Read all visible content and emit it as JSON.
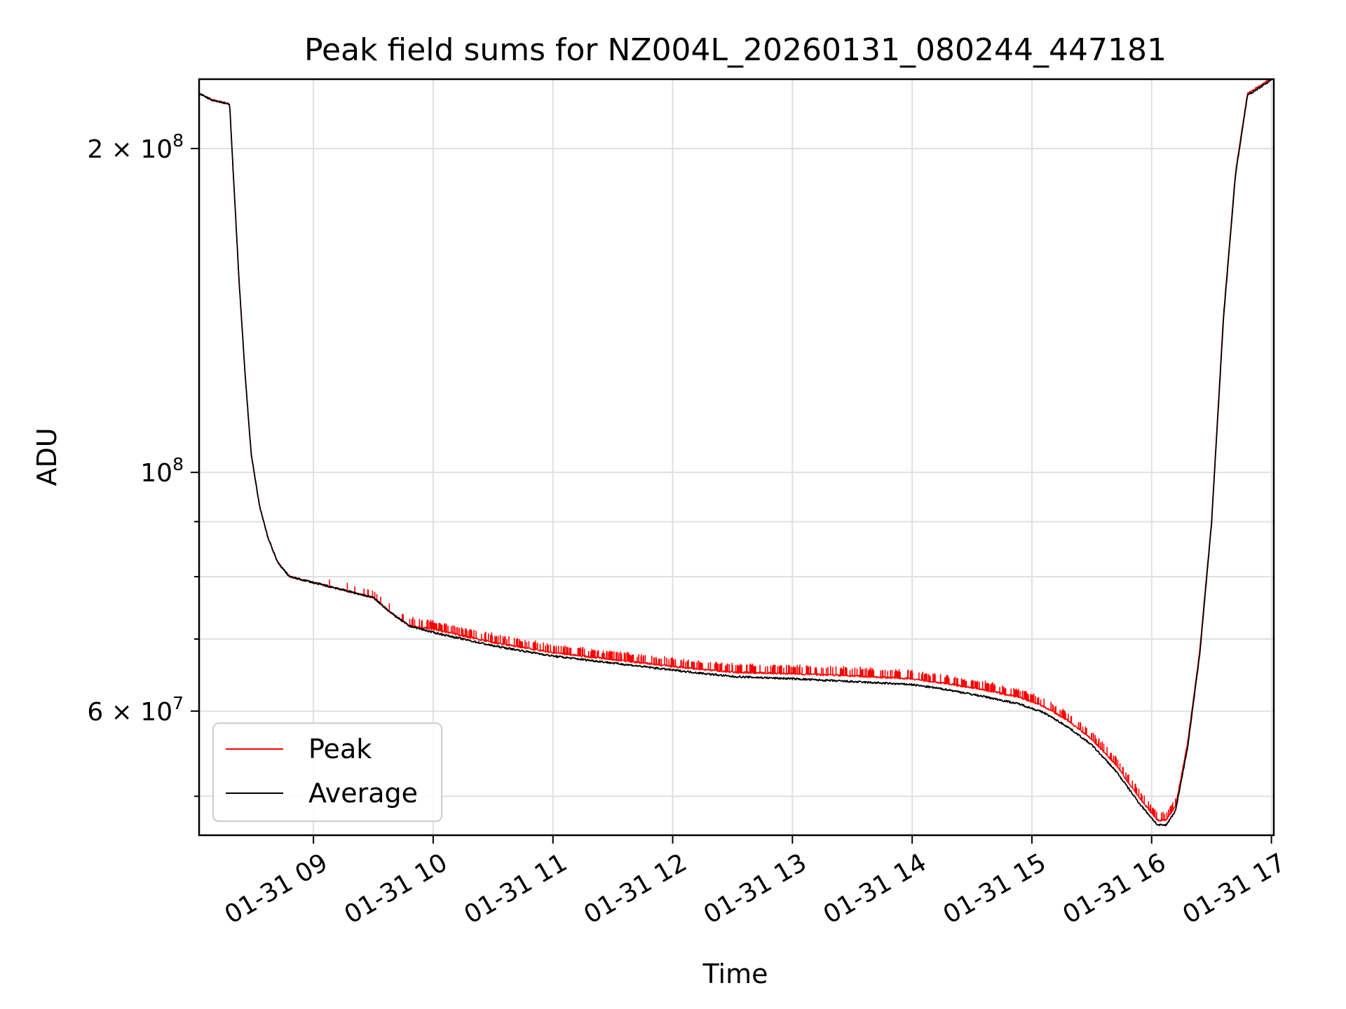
{
  "chart_data": {
    "type": "line",
    "title": "Peak field sums for NZ004L_20260131_080244_447181",
    "xlabel": "Time",
    "ylabel": "ADU",
    "y_scale": "log",
    "ylim": [
      46000000,
      232000000
    ],
    "xlim_hours": [
      8.045,
      17.02
    ],
    "grid": true,
    "legend_position": "lower-left",
    "x_ticks": [
      {
        "hour": 9,
        "label": "01-31 09"
      },
      {
        "hour": 10,
        "label": "01-31 10"
      },
      {
        "hour": 11,
        "label": "01-31 11"
      },
      {
        "hour": 12,
        "label": "01-31 12"
      },
      {
        "hour": 13,
        "label": "01-31 13"
      },
      {
        "hour": 14,
        "label": "01-31 14"
      },
      {
        "hour": 15,
        "label": "01-31 15"
      },
      {
        "hour": 16,
        "label": "01-31 16"
      },
      {
        "hour": 17,
        "label": "01-31 17"
      }
    ],
    "y_major_ticks": [
      {
        "value": 200000000,
        "label": "2×10⁸",
        "mantissa": "2 × 10",
        "exponent": "8"
      },
      {
        "value": 100000000,
        "label": "10⁸",
        "mantissa": "10",
        "exponent": "8"
      },
      {
        "value": 60000000,
        "label": "6×10⁷",
        "mantissa": "6 × 10",
        "exponent": "7"
      }
    ],
    "y_minor_ticks": [
      50000000,
      70000000,
      80000000,
      90000000
    ],
    "series": [
      {
        "name": "Peak",
        "color": "#ff0000",
        "style": "thin line with frequent upward spikes",
        "spike_factor": 1.018,
        "x": [
          8.045,
          8.15,
          8.3,
          8.33,
          8.38,
          8.43,
          8.48,
          8.55,
          8.62,
          8.7,
          8.8,
          9.0,
          9.3,
          9.5,
          9.65,
          9.8,
          10.0,
          10.5,
          11.0,
          11.5,
          12.0,
          12.5,
          13.0,
          13.5,
          14.0,
          14.3,
          14.6,
          14.9,
          15.1,
          15.3,
          15.5,
          15.7,
          15.9,
          16.05,
          16.12,
          16.2,
          16.3,
          16.4,
          16.5,
          16.6,
          16.7,
          16.8,
          17.02
        ],
        "y": [
          225000000,
          222000000,
          220000000,
          190000000,
          150000000,
          123000000,
          104000000,
          93000000,
          87000000,
          82500000,
          80000000,
          79000000,
          77500000,
          76500000,
          74000000,
          72000000,
          71500000,
          69500000,
          68000000,
          67000000,
          66000000,
          65200000,
          65000000,
          64700000,
          64300000,
          63600000,
          62800000,
          61800000,
          60600000,
          58800000,
          56500000,
          53500000,
          49800000,
          47500000,
          47500000,
          49000000,
          56000000,
          68000000,
          90000000,
          140000000,
          190000000,
          225000000,
          233000000
        ]
      },
      {
        "name": "Average",
        "color": "#000000",
        "style": "thin line",
        "x": [
          8.045,
          8.15,
          8.3,
          8.33,
          8.38,
          8.43,
          8.48,
          8.55,
          8.62,
          8.7,
          8.8,
          9.0,
          9.3,
          9.5,
          9.65,
          9.8,
          10.0,
          10.5,
          11.0,
          11.5,
          12.0,
          12.5,
          13.0,
          13.5,
          14.0,
          14.3,
          14.6,
          14.9,
          15.1,
          15.3,
          15.5,
          15.7,
          15.9,
          16.05,
          16.12,
          16.2,
          16.3,
          16.4,
          16.5,
          16.6,
          16.7,
          16.8,
          17.02
        ],
        "y": [
          225000000,
          222000000,
          220000000,
          190000000,
          150000000,
          123000000,
          104000000,
          93000000,
          87000000,
          82500000,
          80000000,
          79000000,
          77500000,
          76500000,
          74000000,
          72000000,
          71000000,
          69000000,
          67500000,
          66500000,
          65500000,
          64600000,
          64300000,
          63900000,
          63500000,
          62800000,
          61900000,
          60900000,
          59800000,
          58000000,
          55800000,
          52800000,
          49200000,
          47000000,
          47000000,
          48500000,
          55500000,
          67500000,
          89500000,
          139000000,
          189000000,
          224000000,
          232500000
        ]
      }
    ]
  }
}
